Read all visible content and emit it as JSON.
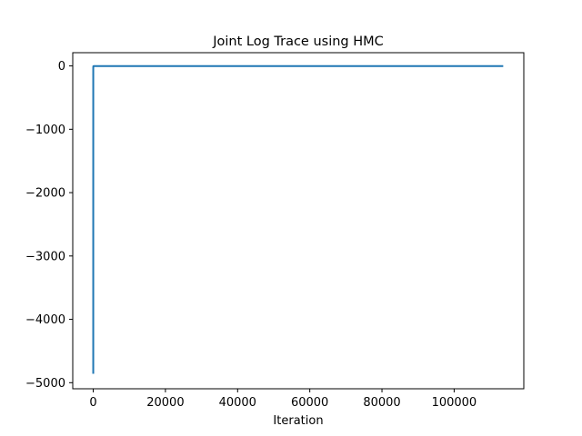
{
  "chart_data": {
    "type": "line",
    "title": "Joint Log Trace using HMC",
    "xlabel": "Iteration",
    "ylabel": "",
    "xlim": [
      -5680,
      119300
    ],
    "ylim": [
      -5096,
      209
    ],
    "x_ticks": [
      0,
      20000,
      40000,
      60000,
      80000,
      100000
    ],
    "x_tick_labels": [
      "0",
      "20000",
      "40000",
      "60000",
      "80000",
      "100000"
    ],
    "y_ticks": [
      0,
      -1000,
      -2000,
      -3000,
      -4000,
      -5000
    ],
    "y_tick_labels": [
      "0",
      "−1000",
      "−2000",
      "−3000",
      "−4000",
      "−5000"
    ],
    "grid": false,
    "series": [
      {
        "name": "",
        "color": "#1f77b4",
        "x": [
          0,
          1,
          2,
          5,
          20,
          100,
          1000,
          113600
        ],
        "values": [
          -4860,
          -600,
          -150,
          -30,
          -5,
          -3,
          -2,
          -2
        ]
      }
    ]
  }
}
